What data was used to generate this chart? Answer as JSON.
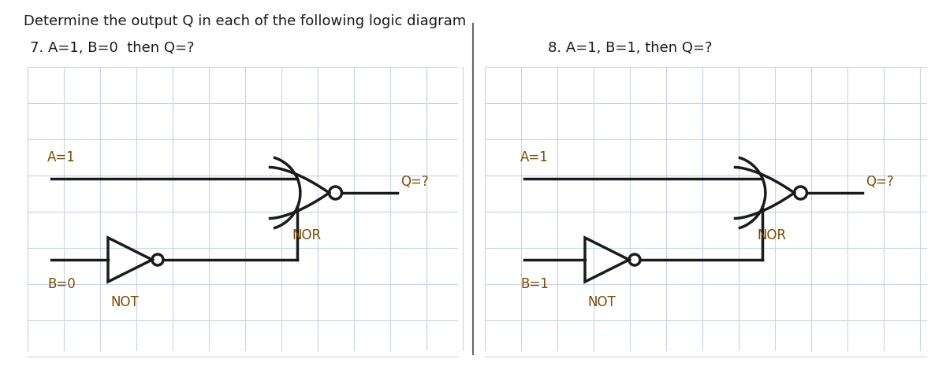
{
  "title": "Determine the output Q in each of the following logic diagram",
  "title_fontsize": 13,
  "problem7_label": "7. A=1, B=0  then Q=?",
  "problem8_label": "8. A=1, B=1, then Q=?",
  "label7_A": "A=1",
  "label7_B": "B=0",
  "label7_Q": "Q=?",
  "label7_NOR": "NOR",
  "label7_NOT": "NOT",
  "label8_A": "A=1",
  "label8_B": "B=1",
  "label8_Q": "Q=?",
  "label8_NOR": "NOR",
  "label8_NOT": "NOT",
  "bg_color": "#ffffff",
  "line_color": "#1a1a1a",
  "grid_color": "#c8d4e8",
  "text_color": "#1a1a1a",
  "label_color": "#7b4a00",
  "title_color": "#1a1a1a",
  "label_fontsize": 12,
  "gate_label_fontsize": 12,
  "problem_label_fontsize": 13,
  "wire_lw": 2.5
}
